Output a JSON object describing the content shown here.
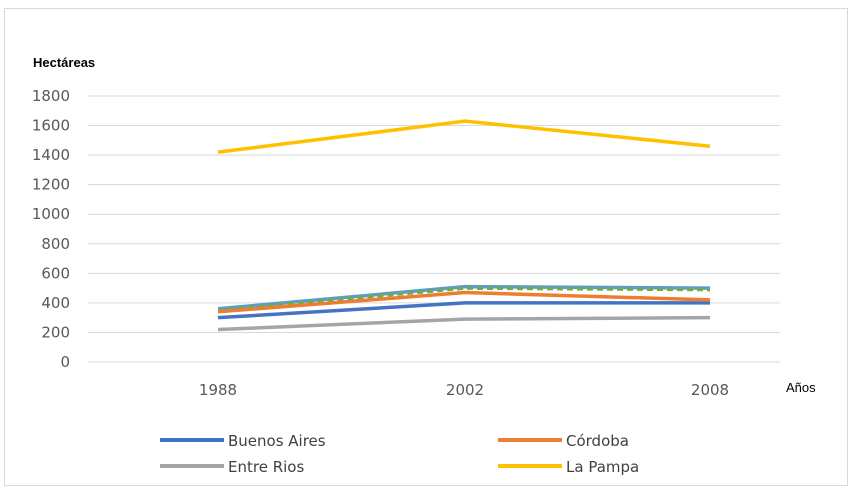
{
  "chart_data": {
    "type": "line",
    "title": "",
    "ylabel": "Hectáreas",
    "xlabel": "Años",
    "categories": [
      "1988",
      "2002",
      "2008"
    ],
    "ylim": [
      0,
      1800
    ],
    "yticks": [
      "0",
      "200",
      "400",
      "600",
      "800",
      "1000",
      "1200",
      "1400",
      "1600",
      "1800"
    ],
    "grid": true,
    "legend_position": "bottom",
    "series": [
      {
        "name": "Buenos Aires",
        "values": [
          300,
          400,
          400
        ],
        "color": "#4472C4"
      },
      {
        "name": "Córdoba",
        "values": [
          340,
          470,
          420
        ],
        "color": "#ED7D31"
      },
      {
        "name": "Entre Rios",
        "values": [
          220,
          290,
          300
        ],
        "color": "#A5A5A5"
      },
      {
        "name": "La Pampa",
        "values": [
          1420,
          1630,
          1460
        ],
        "color": "#FFC000"
      }
    ],
    "extra_lines": [
      {
        "values": [
          360,
          510,
          500
        ],
        "color": "#5B9BD5"
      },
      {
        "values": [
          350,
          500,
          490
        ],
        "color": "#70AD47",
        "dashed": true
      }
    ]
  }
}
